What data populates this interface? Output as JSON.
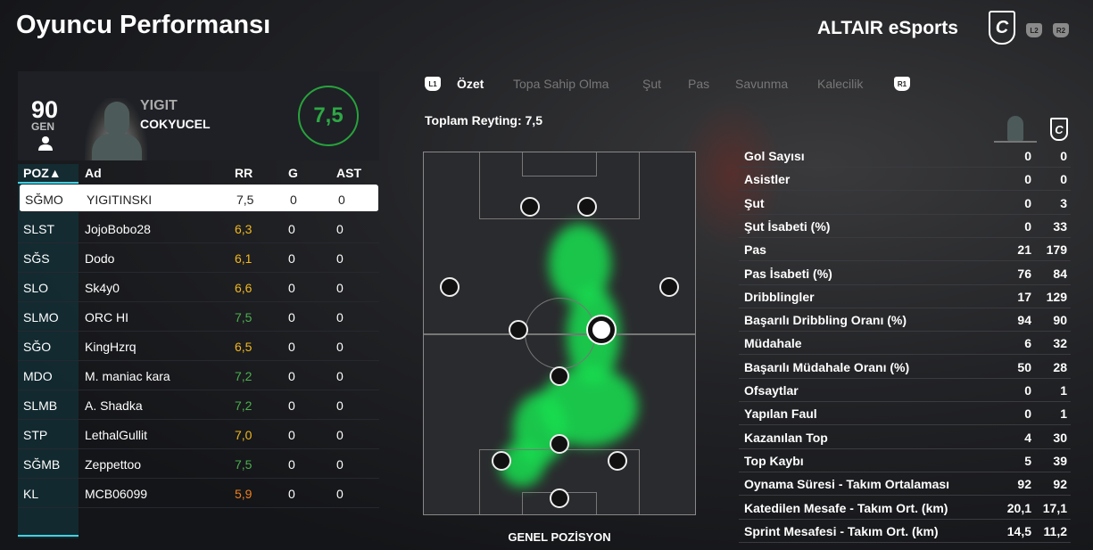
{
  "header": {
    "title": "Oyuncu Performansı",
    "team": "ALTAIR eSports",
    "logo_letter": "C",
    "btn_l2": "L2",
    "btn_r2": "R2"
  },
  "player": {
    "overall": "90",
    "overall_label": "GEN",
    "first_name": "YIGIT",
    "last_name": "COKYUCEL",
    "rating": "7,5"
  },
  "table": {
    "headers": {
      "poz": "POZ▲",
      "ad": "Ad",
      "rr": "RR",
      "g": "G",
      "ast": "AST"
    },
    "rows": [
      {
        "poz": "SĞMO",
        "ad": "YIGITINSKI",
        "rr": "7,5",
        "g": "0",
        "ast": "0",
        "color": "#222222"
      },
      {
        "poz": "SLST",
        "ad": "JojoBobo28",
        "rr": "6,3",
        "g": "0",
        "ast": "0",
        "color": "#f2b81f"
      },
      {
        "poz": "SĞS",
        "ad": "Dodo",
        "rr": "6,1",
        "g": "0",
        "ast": "0",
        "color": "#f2b81f"
      },
      {
        "poz": "SLO",
        "ad": "Sk4y0",
        "rr": "6,6",
        "g": "0",
        "ast": "0",
        "color": "#f2b81f"
      },
      {
        "poz": "SLMO",
        "ad": "ORC HI",
        "rr": "7,5",
        "g": "0",
        "ast": "0",
        "color": "#4caf50"
      },
      {
        "poz": "SĞO",
        "ad": "KingHzrq",
        "rr": "6,5",
        "g": "0",
        "ast": "0",
        "color": "#f2b81f"
      },
      {
        "poz": "MDO",
        "ad": "M. maniac kara",
        "rr": "7,2",
        "g": "0",
        "ast": "0",
        "color": "#4caf50"
      },
      {
        "poz": "SLMB",
        "ad": "A. Shadka",
        "rr": "7,2",
        "g": "0",
        "ast": "0",
        "color": "#4caf50"
      },
      {
        "poz": "STP",
        "ad": "LethalGullit",
        "rr": "7,0",
        "g": "0",
        "ast": "0",
        "color": "#f2b81f"
      },
      {
        "poz": "SĞMB",
        "ad": "Zeppettoo",
        "rr": "7,5",
        "g": "0",
        "ast": "0",
        "color": "#4caf50"
      },
      {
        "poz": "KL",
        "ad": "MCB06099",
        "rr": "5,9",
        "g": "0",
        "ast": "0",
        "color": "#f07f1f"
      }
    ]
  },
  "tabs": {
    "l1": "L1",
    "r1": "R1",
    "items": [
      "Özet",
      "Topa Sahip Olma",
      "Şut",
      "Pas",
      "Savunma",
      "Kalecilik"
    ],
    "active": 0
  },
  "total_rating": "Toplam Reyting: 7,5",
  "pitch_label": "GENEL POZİSYON",
  "stats": [
    {
      "label": "Gol Sayısı",
      "player": "0",
      "team": "0"
    },
    {
      "label": "Asistler",
      "player": "0",
      "team": "0"
    },
    {
      "label": "Şut",
      "player": "0",
      "team": "3"
    },
    {
      "label": "Şut İsabeti (%)",
      "player": "0",
      "team": "33"
    },
    {
      "label": "Pas",
      "player": "21",
      "team": "179"
    },
    {
      "label": "Pas İsabeti (%)",
      "player": "76",
      "team": "84"
    },
    {
      "label": "Dribblingler",
      "player": "17",
      "team": "129"
    },
    {
      "label": "Başarılı Dribbling Oranı (%)",
      "player": "94",
      "team": "90"
    },
    {
      "label": "Müdahale",
      "player": "6",
      "team": "32"
    },
    {
      "label": "Başarılı Müdahale Oranı (%)",
      "player": "50",
      "team": "28"
    },
    {
      "label": "Ofsaytlar",
      "player": "0",
      "team": "1"
    },
    {
      "label": "Yapılan Faul",
      "player": "0",
      "team": "1"
    },
    {
      "label": "Kazanılan Top",
      "player": "4",
      "team": "30"
    },
    {
      "label": "Top Kaybı",
      "player": "5",
      "team": "39"
    },
    {
      "label": "Oynama Süresi - Takım Ortalaması",
      "player": "92",
      "team": "92"
    },
    {
      "label": "Katedilen Mesafe - Takım Ort. (km)",
      "player": "20,1",
      "team": "17,1"
    },
    {
      "label": "Sprint Mesafesi - Takım Ort. (km)",
      "player": "14,5",
      "team": "11,2"
    }
  ]
}
